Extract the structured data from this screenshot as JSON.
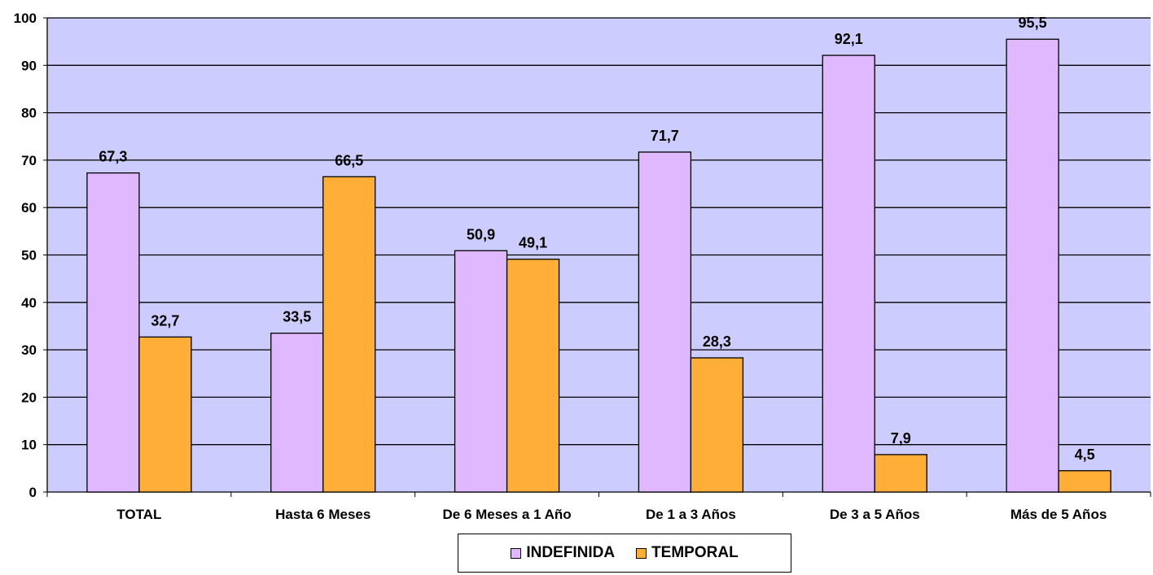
{
  "chart_data": {
    "type": "bar",
    "categories": [
      "TOTAL",
      "Hasta 6 Meses",
      "De 6 Meses a 1 Año",
      "De 1 a 3 Años",
      "De 3 a 5 Años",
      "Más de 5 Años"
    ],
    "series": [
      {
        "name": "INDEFINIDA",
        "values": [
          67.3,
          33.5,
          50.9,
          71.7,
          92.1,
          95.5
        ],
        "labels": [
          "67,3",
          "33,5",
          "50,9",
          "71,7",
          "92,1",
          "95,5"
        ],
        "color": "#E0B8FF"
      },
      {
        "name": "TEMPORAL",
        "values": [
          32.7,
          66.5,
          49.1,
          28.3,
          7.9,
          4.5
        ],
        "labels": [
          "32,7",
          "66,5",
          "49,1",
          "28,3",
          "7,9",
          "4,5"
        ],
        "color": "#FFAF38"
      }
    ],
    "ylim": [
      0,
      100
    ],
    "yticks": [
      0,
      10,
      20,
      30,
      40,
      50,
      60,
      70,
      80,
      90,
      100
    ],
    "grid": true,
    "plot_background": "#CCCCFF",
    "legend_position": "bottom-center",
    "title": "",
    "xlabel": "",
    "ylabel": ""
  }
}
